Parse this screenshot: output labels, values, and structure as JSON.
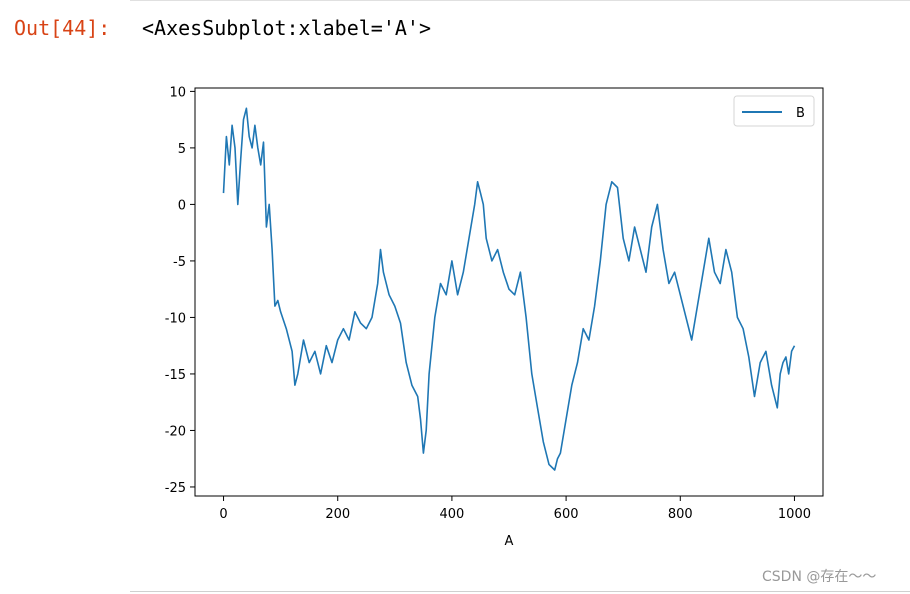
{
  "cell": {
    "prompt": "Out[44]:",
    "output_text": "<AxesSubplot:xlabel='A'>"
  },
  "watermark": "CSDN @存在～～",
  "chart_data": {
    "type": "line",
    "xlabel": "A",
    "ylabel": "",
    "xlim": [
      -50,
      1050
    ],
    "ylim": [
      -25.8,
      10.3
    ],
    "xticks": [
      0,
      200,
      400,
      600,
      800,
      1000
    ],
    "yticks": [
      10,
      5,
      0,
      -5,
      -10,
      -15,
      -20,
      -25
    ],
    "grid": false,
    "legend": {
      "location": "upper right",
      "entries": [
        "B"
      ]
    },
    "series": [
      {
        "name": "B",
        "color": "#1f77b4",
        "x": [
          0,
          5,
          10,
          15,
          20,
          25,
          30,
          35,
          40,
          45,
          50,
          55,
          60,
          65,
          70,
          75,
          80,
          85,
          90,
          95,
          100,
          110,
          120,
          125,
          130,
          140,
          150,
          160,
          170,
          180,
          190,
          200,
          210,
          220,
          230,
          240,
          250,
          260,
          270,
          275,
          280,
          290,
          300,
          310,
          320,
          330,
          340,
          345,
          350,
          355,
          360,
          370,
          380,
          390,
          400,
          410,
          420,
          430,
          440,
          445,
          450,
          455,
          460,
          470,
          480,
          490,
          500,
          510,
          520,
          530,
          540,
          550,
          560,
          570,
          580,
          585,
          590,
          600,
          610,
          620,
          630,
          640,
          650,
          660,
          670,
          680,
          690,
          700,
          710,
          720,
          730,
          740,
          750,
          760,
          770,
          780,
          790,
          800,
          810,
          820,
          830,
          840,
          850,
          860,
          870,
          880,
          890,
          900,
          910,
          920,
          930,
          940,
          950,
          960,
          970,
          975,
          980,
          985,
          990,
          995,
          1000
        ],
        "y": [
          1,
          6,
          3.5,
          7,
          5,
          0,
          4,
          7.5,
          8.5,
          6,
          5,
          7,
          5,
          3.5,
          5.5,
          -2,
          0,
          -4,
          -9,
          -8.5,
          -9.5,
          -11,
          -13,
          -16,
          -15,
          -12,
          -14,
          -13,
          -15,
          -12.5,
          -14,
          -12,
          -11,
          -12,
          -9.5,
          -10.5,
          -11,
          -10,
          -7,
          -4,
          -6,
          -8,
          -9,
          -10.5,
          -14,
          -16,
          -17,
          -19,
          -22,
          -20,
          -15,
          -10,
          -7,
          -8,
          -5,
          -8,
          -6,
          -3,
          0,
          2,
          1,
          0,
          -3,
          -5,
          -4,
          -6,
          -7.5,
          -8,
          -6,
          -10,
          -15,
          -18,
          -21,
          -23,
          -23.5,
          -22.5,
          -22,
          -19,
          -16,
          -14,
          -11,
          -12,
          -9,
          -5,
          0,
          2,
          1.5,
          -3,
          -5,
          -2,
          -4,
          -6,
          -2,
          0,
          -4,
          -7,
          -6,
          -8,
          -10,
          -12,
          -9,
          -6,
          -3,
          -6,
          -7,
          -4,
          -6,
          -10,
          -11,
          -13.5,
          -17,
          -14,
          -13,
          -16,
          -18,
          -15,
          -14,
          -13.5,
          -15,
          -13,
          -12.5
        ]
      }
    ]
  }
}
